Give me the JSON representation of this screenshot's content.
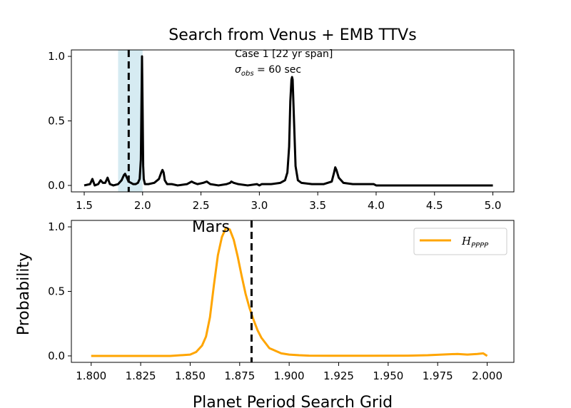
{
  "figure_title": "Search from Venus + EMB TTVs",
  "chart_data": [
    {
      "type": "line",
      "panel": "top",
      "xlim": [
        1.39,
        5.18
      ],
      "ylim": [
        -0.05,
        1.05
      ],
      "x_ticks": [
        "1.5",
        "2.0",
        "2.5",
        "3.0",
        "3.5",
        "4.0",
        "4.5",
        "5.0"
      ],
      "y_ticks": [
        "0.0",
        "0.5",
        "1.0"
      ],
      "shaded_region": [
        1.79,
        2.0
      ],
      "shade_color": "#add8e6",
      "vline": 1.881,
      "annotation_line1": "Case 1 [22 yr span]",
      "annotation_line2_symbol": "σ",
      "annotation_line2_sub": "obs",
      "annotation_line2_rest": " = 60 sec",
      "series": [
        {
          "color": "#000000",
          "x": [
            1.5,
            1.55,
            1.57,
            1.59,
            1.62,
            1.64,
            1.66,
            1.68,
            1.7,
            1.72,
            1.75,
            1.79,
            1.82,
            1.84,
            1.85,
            1.86,
            1.88,
            1.9,
            1.92,
            1.94,
            1.96,
            1.975,
            1.985,
            1.99,
            1.995,
            2.0,
            2.005,
            2.01,
            2.02,
            2.05,
            2.1,
            2.14,
            2.16,
            2.17,
            2.18,
            2.19,
            2.21,
            2.25,
            2.3,
            2.38,
            2.42,
            2.44,
            2.47,
            2.52,
            2.55,
            2.58,
            2.65,
            2.72,
            2.75,
            2.76,
            2.78,
            2.82,
            2.9,
            2.98,
            3.0,
            3.02,
            3.1,
            3.18,
            3.22,
            3.24,
            3.255,
            3.265,
            3.275,
            3.28,
            3.285,
            3.295,
            3.31,
            3.33,
            3.36,
            3.45,
            3.55,
            3.62,
            3.64,
            3.65,
            3.66,
            3.68,
            3.72,
            3.8,
            3.9,
            3.98,
            4.0,
            4.02,
            4.5,
            5.0
          ],
          "y": [
            0.0,
            0.01,
            0.05,
            0.0,
            0.01,
            0.04,
            0.02,
            0.02,
            0.06,
            0.01,
            0.0,
            0.01,
            0.04,
            0.08,
            0.09,
            0.07,
            0.03,
            0.02,
            0.01,
            0.01,
            0.02,
            0.05,
            0.2,
            0.6,
            1.0,
            0.6,
            0.15,
            0.05,
            0.01,
            0.01,
            0.02,
            0.05,
            0.1,
            0.12,
            0.1,
            0.04,
            0.01,
            0.01,
            0.0,
            0.01,
            0.03,
            0.02,
            0.01,
            0.02,
            0.03,
            0.01,
            0.0,
            0.01,
            0.02,
            0.03,
            0.02,
            0.01,
            0.0,
            0.01,
            0.0,
            0.01,
            0.01,
            0.02,
            0.04,
            0.1,
            0.3,
            0.65,
            0.82,
            0.84,
            0.82,
            0.55,
            0.15,
            0.04,
            0.02,
            0.01,
            0.01,
            0.03,
            0.1,
            0.14,
            0.12,
            0.06,
            0.02,
            0.01,
            0.01,
            0.01,
            0.0,
            0.0,
            0.0,
            0.0
          ]
        }
      ]
    },
    {
      "type": "line",
      "panel": "bottom",
      "xlim": [
        1.79,
        2.0135
      ],
      "ylim": [
        -0.05,
        1.05
      ],
      "x_ticks": [
        "1.800",
        "1.825",
        "1.850",
        "1.875",
        "1.900",
        "1.925",
        "1.950",
        "1.975",
        "2.000"
      ],
      "y_ticks": [
        "0.0",
        "0.5",
        "1.0"
      ],
      "ylabel": "Probability",
      "xlabel": "Planet Period Search Grid",
      "vline": 1.881,
      "vline_label": "Mars",
      "legend_position": "top-right",
      "series": [
        {
          "name_base": "H",
          "name_sub": "PPPP",
          "color": "#ffa500",
          "x": [
            1.8,
            1.82,
            1.84,
            1.85,
            1.853,
            1.856,
            1.858,
            1.86,
            1.862,
            1.864,
            1.866,
            1.868,
            1.87,
            1.872,
            1.874,
            1.876,
            1.878,
            1.88,
            1.882,
            1.884,
            1.886,
            1.888,
            1.89,
            1.893,
            1.896,
            1.9,
            1.905,
            1.91,
            1.92,
            1.94,
            1.96,
            1.97,
            1.98,
            1.985,
            1.99,
            1.995,
            1.998,
            2.0
          ],
          "y": [
            0.0,
            0.0,
            0.0,
            0.01,
            0.03,
            0.08,
            0.15,
            0.3,
            0.55,
            0.78,
            0.92,
            0.99,
            0.98,
            0.9,
            0.77,
            0.62,
            0.48,
            0.37,
            0.28,
            0.2,
            0.14,
            0.1,
            0.06,
            0.04,
            0.02,
            0.01,
            0.005,
            0.002,
            0.001,
            0.001,
            0.002,
            0.005,
            0.012,
            0.015,
            0.01,
            0.015,
            0.02,
            0.0
          ]
        }
      ]
    }
  ]
}
